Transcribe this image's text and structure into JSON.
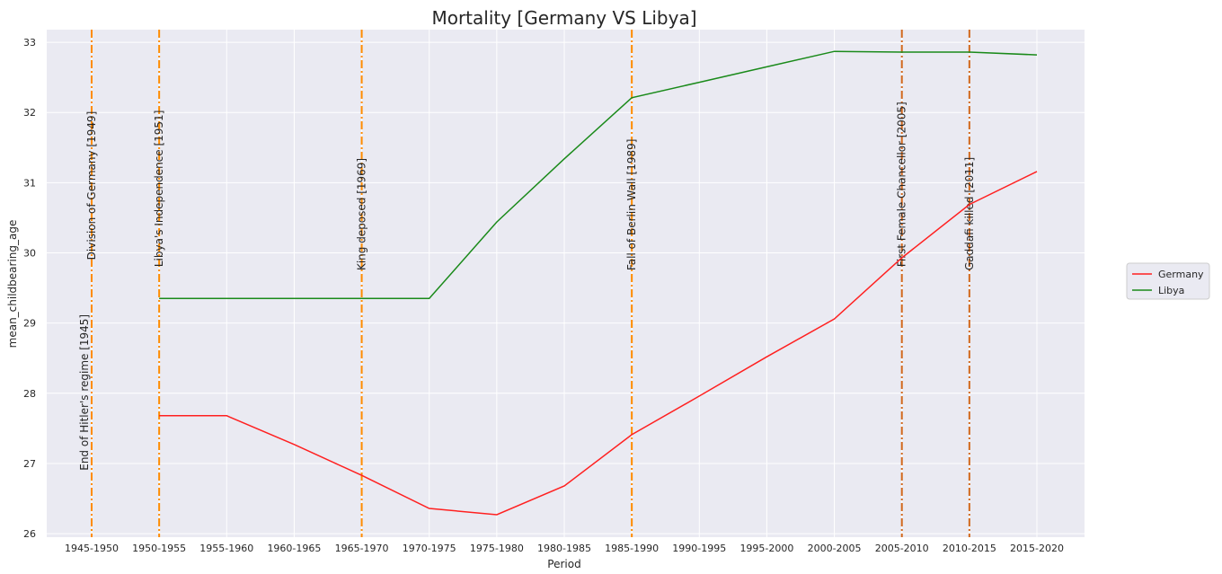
{
  "chart_data": {
    "type": "line",
    "title": "Mortality [Germany VS Libya]",
    "xlabel": "Period",
    "ylabel": "mean_childbearing_age",
    "categories": [
      "1945-1950",
      "1950-1955",
      "1955-1960",
      "1960-1965",
      "1965-1970",
      "1970-1975",
      "1975-1980",
      "1980-1985",
      "1985-1990",
      "1990-1995",
      "1995-2000",
      "2000-2005",
      "2005-2010",
      "2010-2015",
      "2015-2020"
    ],
    "ylim": [
      25.95,
      33.18
    ],
    "yticks": [
      26,
      27,
      28,
      29,
      30,
      31,
      32,
      33
    ],
    "grid": true,
    "legend_position": "right",
    "series": [
      {
        "name": "Germany",
        "color": "#ff2020",
        "values": [
          null,
          27.68,
          27.68,
          27.27,
          26.83,
          26.36,
          26.27,
          26.68,
          27.41,
          27.96,
          28.52,
          29.06,
          29.93,
          30.69,
          31.16
        ]
      },
      {
        "name": "Libya",
        "color": "#1a8a1a",
        "values": [
          null,
          29.35,
          29.35,
          29.35,
          29.35,
          29.35,
          30.44,
          31.34,
          32.21,
          32.43,
          32.65,
          32.87,
          32.86,
          32.86,
          32.82
        ]
      }
    ],
    "annotations": [
      {
        "x": "1945-1950",
        "label": "End of Hitler's regime [1945]",
        "y": 26.9,
        "color": "#ff8c00"
      },
      {
        "x": "1945-1950",
        "label": "Division of Germany [1949]",
        "y": 29.9,
        "color": "#ff8c00"
      },
      {
        "x": "1950-1955",
        "label": "Libya's Independence [1951]",
        "y": 29.8,
        "color": "#ff8c00"
      },
      {
        "x": "1965-1970",
        "label": "King deposed [1969]",
        "y": 29.75,
        "color": "#ff8c00"
      },
      {
        "x": "1985-1990",
        "label": "Fall of Berlin Wall [1989]",
        "y": 29.75,
        "color": "#ff8c00"
      },
      {
        "x": "2005-2010",
        "label": "First Female Chancellor [2005]",
        "y": 29.8,
        "color": "#d2691e"
      },
      {
        "x": "2010-2015",
        "label": "Gaddafi killed [2011]",
        "y": 29.75,
        "color": "#d2691e"
      }
    ]
  }
}
